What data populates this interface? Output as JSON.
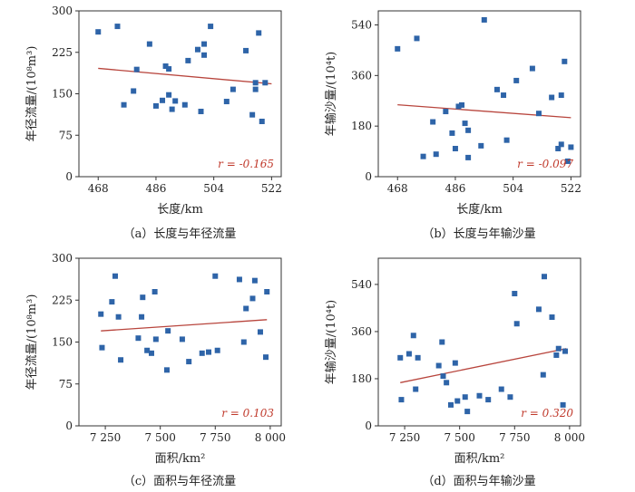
{
  "chart_data": [
    {
      "type": "scatter",
      "caption": "（a）长度与年径流量",
      "xlabel": "长度/km",
      "ylabel": "年径流量/(10⁸m³)",
      "xticks": [
        "468",
        "486",
        "504",
        "522"
      ],
      "yticks": [
        "0",
        "75",
        "150",
        "225",
        "300"
      ],
      "xlim": [
        462,
        525
      ],
      "ylim": [
        0,
        300
      ],
      "r_text": "r = -0.165",
      "marker_color": "#2e64a8",
      "line_color": "#b8453d",
      "trend": [
        [
          468,
          196
        ],
        [
          522,
          168
        ]
      ],
      "points": [
        [
          468,
          262
        ],
        [
          474,
          272
        ],
        [
          476,
          130
        ],
        [
          479,
          155
        ],
        [
          480,
          194
        ],
        [
          484,
          240
        ],
        [
          486,
          128
        ],
        [
          488,
          138
        ],
        [
          489,
          200
        ],
        [
          490,
          195
        ],
        [
          490,
          148
        ],
        [
          491,
          122
        ],
        [
          492,
          137
        ],
        [
          495,
          130
        ],
        [
          496,
          210
        ],
        [
          499,
          230
        ],
        [
          500,
          118
        ],
        [
          501,
          240
        ],
        [
          501,
          220
        ],
        [
          503,
          272
        ],
        [
          508,
          136
        ],
        [
          510,
          158
        ],
        [
          514,
          228
        ],
        [
          516,
          112
        ],
        [
          517,
          158
        ],
        [
          517,
          170
        ],
        [
          518,
          260
        ],
        [
          519,
          100
        ],
        [
          520,
          170
        ]
      ]
    },
    {
      "type": "scatter",
      "caption": "（b）长度与年输沙量",
      "xlabel": "长度/km",
      "ylabel": "年输沙量/(10⁴t)",
      "xticks": [
        "468",
        "486",
        "504",
        "522"
      ],
      "yticks": [
        "0",
        "180",
        "360",
        "540"
      ],
      "xlim": [
        462,
        525
      ],
      "ylim": [
        0,
        590
      ],
      "r_text": "r = -0.097",
      "marker_color": "#2e64a8",
      "line_color": "#b8453d",
      "trend": [
        [
          468,
          256
        ],
        [
          522,
          210
        ]
      ],
      "points": [
        [
          468,
          455
        ],
        [
          474,
          492
        ],
        [
          476,
          72
        ],
        [
          479,
          195
        ],
        [
          480,
          80
        ],
        [
          483,
          232
        ],
        [
          485,
          155
        ],
        [
          486,
          100
        ],
        [
          487,
          250
        ],
        [
          488,
          255
        ],
        [
          489,
          190
        ],
        [
          490,
          68
        ],
        [
          490,
          165
        ],
        [
          494,
          110
        ],
        [
          495,
          558
        ],
        [
          499,
          310
        ],
        [
          501,
          290
        ],
        [
          502,
          130
        ],
        [
          505,
          342
        ],
        [
          510,
          385
        ],
        [
          512,
          225
        ],
        [
          516,
          282
        ],
        [
          518,
          100
        ],
        [
          519,
          115
        ],
        [
          519,
          290
        ],
        [
          520,
          410
        ],
        [
          521,
          55
        ],
        [
          522,
          105
        ]
      ]
    },
    {
      "type": "scatter",
      "caption": "（c）面积与年径流量",
      "xlabel": "面积/km²",
      "ylabel": "年径流量/(10⁸m³)",
      "xticks": [
        "7 250",
        "7 500",
        "7 750",
        "8 000"
      ],
      "yticks": [
        "0",
        "75",
        "150",
        "225",
        "300"
      ],
      "xlim": [
        7130,
        8050
      ],
      "ylim": [
        0,
        300
      ],
      "r_text": "r = 0.103",
      "marker_color": "#2e64a8",
      "line_color": "#b8453d",
      "trend": [
        [
          7230,
          170
        ],
        [
          7985,
          190
        ]
      ],
      "points": [
        [
          7230,
          200
        ],
        [
          7235,
          140
        ],
        [
          7280,
          222
        ],
        [
          7295,
          268
        ],
        [
          7310,
          195
        ],
        [
          7320,
          118
        ],
        [
          7400,
          157
        ],
        [
          7415,
          195
        ],
        [
          7420,
          230
        ],
        [
          7440,
          135
        ],
        [
          7460,
          130
        ],
        [
          7475,
          240
        ],
        [
          7480,
          155
        ],
        [
          7530,
          100
        ],
        [
          7535,
          170
        ],
        [
          7600,
          155
        ],
        [
          7630,
          115
        ],
        [
          7690,
          130
        ],
        [
          7720,
          132
        ],
        [
          7750,
          268
        ],
        [
          7760,
          135
        ],
        [
          7860,
          262
        ],
        [
          7880,
          150
        ],
        [
          7890,
          210
        ],
        [
          7920,
          228
        ],
        [
          7930,
          260
        ],
        [
          7955,
          168
        ],
        [
          7980,
          123
        ],
        [
          7985,
          240
        ]
      ]
    },
    {
      "type": "scatter",
      "caption": "（d）面积与年输沙量",
      "xlabel": "面积/km²",
      "ylabel": "年输沙量/(10⁴t)",
      "xticks": [
        "7 250",
        "7 500",
        "7 750",
        "8 000"
      ],
      "yticks": [
        "0",
        "180",
        "360",
        "540"
      ],
      "xlim": [
        7130,
        8050
      ],
      "ylim": [
        0,
        640
      ],
      "r_text": "r = 0.320",
      "marker_color": "#2e64a8",
      "line_color": "#b8453d",
      "trend": [
        [
          7230,
          165
        ],
        [
          7985,
          295
        ]
      ],
      "points": [
        [
          7230,
          260
        ],
        [
          7235,
          100
        ],
        [
          7270,
          275
        ],
        [
          7290,
          345
        ],
        [
          7300,
          140
        ],
        [
          7310,
          260
        ],
        [
          7405,
          230
        ],
        [
          7420,
          320
        ],
        [
          7425,
          190
        ],
        [
          7440,
          165
        ],
        [
          7460,
          80
        ],
        [
          7480,
          240
        ],
        [
          7490,
          95
        ],
        [
          7525,
          110
        ],
        [
          7535,
          55
        ],
        [
          7590,
          115
        ],
        [
          7630,
          100
        ],
        [
          7690,
          140
        ],
        [
          7730,
          110
        ],
        [
          7750,
          505
        ],
        [
          7760,
          390
        ],
        [
          7860,
          445
        ],
        [
          7880,
          195
        ],
        [
          7885,
          570
        ],
        [
          7920,
          415
        ],
        [
          7940,
          270
        ],
        [
          7950,
          295
        ],
        [
          7970,
          80
        ],
        [
          7980,
          285
        ]
      ]
    }
  ]
}
